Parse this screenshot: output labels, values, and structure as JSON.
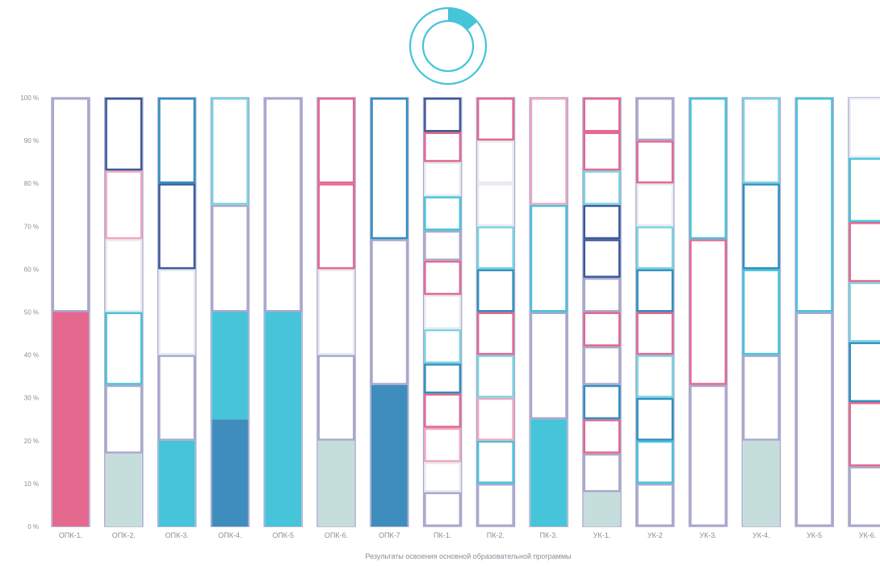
{
  "colors": {
    "pink": "#e5688f",
    "cyan": "#45c4da",
    "lightcyan": "#7ad4e1",
    "navy": "#3d5a99",
    "teal": "#2f8fc1",
    "lavender": "#a9a9cd",
    "lightpink": "#f0a7bc",
    "mint": "#c5dedb",
    "pale": "#e6ebf0",
    "deepblue": "#3f8dbd"
  },
  "chart_data": {
    "type": "bar",
    "stacked": true,
    "xlabel": "Результаты освоения основной образовательной программы",
    "ylabel": "",
    "ylim": [
      0,
      100
    ],
    "yticks": [
      "0 %",
      "10 %",
      "20 %",
      "30 %",
      "40 %",
      "50 %",
      "60 %",
      "70 %",
      "80 %",
      "90 %",
      "100 %"
    ],
    "grid": false,
    "categories": [
      "ОПК-1.",
      "ОПК-2.",
      "ОПК-3.",
      "ОПК-4.",
      "ОПК-5",
      "ОПК-6.",
      "ОПК-7",
      "ПК-1.",
      "ПК-2.",
      "ПК-3.",
      "УК-1.",
      "УК-2",
      "УК-3.",
      "УК-4.",
      "УК-5",
      "УК-6."
    ],
    "bars": [
      [
        {
          "from": 0,
          "to": 50,
          "fill": "pink"
        },
        {
          "from": 50,
          "to": 100,
          "outline": "lavender"
        }
      ],
      [
        {
          "from": 0,
          "to": 17,
          "fill": "mint"
        },
        {
          "from": 17,
          "to": 33,
          "outline": "lavender"
        },
        {
          "from": 33,
          "to": 50,
          "outline": "cyan"
        },
        {
          "from": 50,
          "to": 67,
          "outline": "pale"
        },
        {
          "from": 67,
          "to": 83,
          "outline": "lightpink"
        },
        {
          "from": 83,
          "to": 100,
          "outline": "navy"
        }
      ],
      [
        {
          "from": 0,
          "to": 20,
          "fill": "cyan"
        },
        {
          "from": 20,
          "to": 40,
          "outline": "lavender"
        },
        {
          "from": 40,
          "to": 60,
          "outline": "pale"
        },
        {
          "from": 60,
          "to": 80,
          "outline": "navy"
        },
        {
          "from": 80,
          "to": 100,
          "outline": "teal"
        }
      ],
      [
        {
          "from": 0,
          "to": 25,
          "fill": "deepblue"
        },
        {
          "from": 25,
          "to": 50,
          "fill": "cyan"
        },
        {
          "from": 50,
          "to": 75,
          "outline": "lavender"
        },
        {
          "from": 75,
          "to": 100,
          "outline": "lightcyan"
        }
      ],
      [
        {
          "from": 0,
          "to": 50,
          "fill": "cyan"
        },
        {
          "from": 50,
          "to": 100,
          "outline": "lavender"
        }
      ],
      [
        {
          "from": 0,
          "to": 20,
          "fill": "mint"
        },
        {
          "from": 20,
          "to": 40,
          "outline": "lavender"
        },
        {
          "from": 40,
          "to": 60,
          "outline": "pale"
        },
        {
          "from": 60,
          "to": 80,
          "outline": "pink"
        },
        {
          "from": 80,
          "to": 100,
          "outline": "pink"
        }
      ],
      [
        {
          "from": 0,
          "to": 33,
          "fill": "deepblue"
        },
        {
          "from": 33,
          "to": 67,
          "outline": "lavender"
        },
        {
          "from": 67,
          "to": 100,
          "outline": "teal"
        }
      ],
      [
        {
          "from": 0,
          "to": 8,
          "outline": "lavender"
        },
        {
          "from": 8,
          "to": 15,
          "outline": "pale"
        },
        {
          "from": 15,
          "to": 23,
          "outline": "lightpink"
        },
        {
          "from": 23,
          "to": 31,
          "outline": "pink"
        },
        {
          "from": 31,
          "to": 38,
          "outline": "teal"
        },
        {
          "from": 38,
          "to": 46,
          "outline": "lightcyan"
        },
        {
          "from": 46,
          "to": 54,
          "outline": "pale"
        },
        {
          "from": 54,
          "to": 62,
          "outline": "pink"
        },
        {
          "from": 62,
          "to": 69,
          "outline": "lavender"
        },
        {
          "from": 69,
          "to": 77,
          "outline": "cyan"
        },
        {
          "from": 77,
          "to": 85,
          "outline": "pale"
        },
        {
          "from": 85,
          "to": 92,
          "outline": "pink"
        },
        {
          "from": 92,
          "to": 100,
          "outline": "navy"
        }
      ],
      [
        {
          "from": 0,
          "to": 10,
          "outline": "lavender"
        },
        {
          "from": 10,
          "to": 20,
          "outline": "cyan"
        },
        {
          "from": 20,
          "to": 30,
          "outline": "lightpink"
        },
        {
          "from": 30,
          "to": 40,
          "outline": "lightcyan"
        },
        {
          "from": 40,
          "to": 50,
          "outline": "pink"
        },
        {
          "from": 50,
          "to": 60,
          "outline": "teal"
        },
        {
          "from": 60,
          "to": 70,
          "outline": "lightcyan"
        },
        {
          "from": 70,
          "to": 80,
          "outline": "pale"
        },
        {
          "from": 80,
          "to": 90,
          "outline": "pale"
        },
        {
          "from": 90,
          "to": 100,
          "outline": "pink"
        }
      ],
      [
        {
          "from": 0,
          "to": 25,
          "fill": "cyan"
        },
        {
          "from": 25,
          "to": 50,
          "outline": "lavender"
        },
        {
          "from": 50,
          "to": 75,
          "outline": "cyan"
        },
        {
          "from": 75,
          "to": 100,
          "outline": "lightpink"
        }
      ],
      [
        {
          "from": 0,
          "to": 8,
          "fill": "mint"
        },
        {
          "from": 8,
          "to": 17,
          "outline": "lavender"
        },
        {
          "from": 17,
          "to": 25,
          "outline": "pink"
        },
        {
          "from": 25,
          "to": 33,
          "outline": "teal"
        },
        {
          "from": 33,
          "to": 42,
          "outline": "lavender"
        },
        {
          "from": 42,
          "to": 50,
          "outline": "pink"
        },
        {
          "from": 50,
          "to": 58,
          "outline": "lavender"
        },
        {
          "from": 58,
          "to": 67,
          "outline": "navy"
        },
        {
          "from": 67,
          "to": 75,
          "outline": "navy"
        },
        {
          "from": 75,
          "to": 83,
          "outline": "lightcyan"
        },
        {
          "from": 83,
          "to": 92,
          "outline": "pink"
        },
        {
          "from": 92,
          "to": 100,
          "outline": "pink"
        }
      ],
      [
        {
          "from": 0,
          "to": 10,
          "outline": "lavender"
        },
        {
          "from": 10,
          "to": 20,
          "outline": "cyan"
        },
        {
          "from": 20,
          "to": 30,
          "outline": "teal"
        },
        {
          "from": 30,
          "to": 40,
          "outline": "lightcyan"
        },
        {
          "from": 40,
          "to": 50,
          "outline": "pink"
        },
        {
          "from": 50,
          "to": 60,
          "outline": "teal"
        },
        {
          "from": 60,
          "to": 70,
          "outline": "lightcyan"
        },
        {
          "from": 70,
          "to": 80,
          "outline": "pale"
        },
        {
          "from": 80,
          "to": 90,
          "outline": "pink"
        },
        {
          "from": 90,
          "to": 100,
          "outline": "lavender"
        }
      ],
      [
        {
          "from": 0,
          "to": 33,
          "outline": "lavender"
        },
        {
          "from": 33,
          "to": 67,
          "outline": "pink"
        },
        {
          "from": 67,
          "to": 100,
          "outline": "cyan"
        }
      ],
      [
        {
          "from": 0,
          "to": 20,
          "fill": "mint"
        },
        {
          "from": 20,
          "to": 40,
          "outline": "lavender"
        },
        {
          "from": 40,
          "to": 60,
          "outline": "cyan"
        },
        {
          "from": 60,
          "to": 80,
          "outline": "teal"
        },
        {
          "from": 80,
          "to": 100,
          "outline": "lightcyan"
        }
      ],
      [
        {
          "from": 0,
          "to": 50,
          "outline": "lavender"
        },
        {
          "from": 50,
          "to": 100,
          "outline": "cyan"
        }
      ],
      [
        {
          "from": 0,
          "to": 14,
          "outline": "lavender"
        },
        {
          "from": 14,
          "to": 29,
          "outline": "pink"
        },
        {
          "from": 29,
          "to": 43,
          "outline": "teal"
        },
        {
          "from": 43,
          "to": 57,
          "outline": "lightcyan"
        },
        {
          "from": 57,
          "to": 71,
          "outline": "pink"
        },
        {
          "from": 71,
          "to": 86,
          "outline": "cyan"
        },
        {
          "from": 86,
          "to": 100,
          "outline": "pale"
        }
      ]
    ],
    "donut": {
      "value": 14,
      "max": 100
    }
  }
}
